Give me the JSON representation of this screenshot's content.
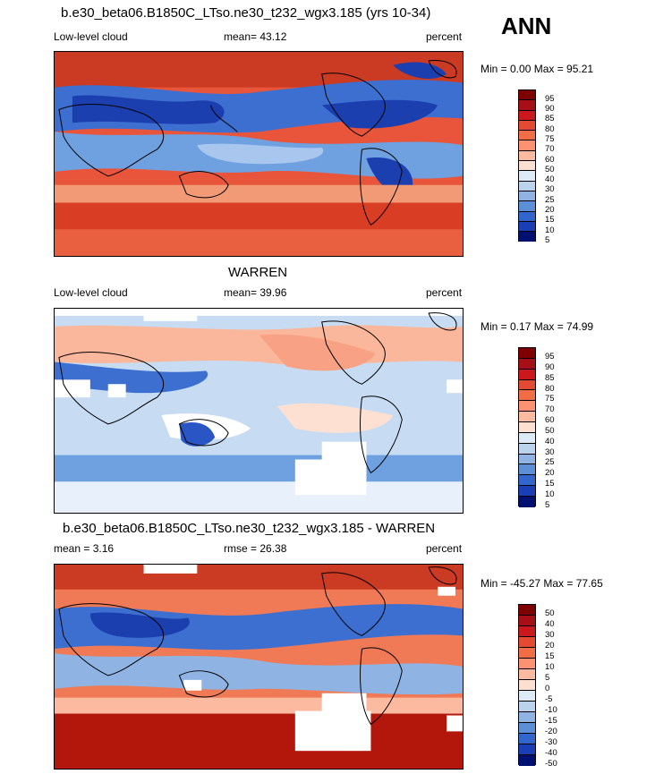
{
  "season": "ANN",
  "panels": [
    {
      "title": "b.e30_beta06.B1850C_LTso.ne30_t232_wgx3.185 (yrs 10-34)",
      "left_label": "Low-level cloud",
      "center_label": "mean=  43.12",
      "right_label": "percent",
      "minmax": "Min =   0.00 Max =  95.21",
      "colorbar_labels": [
        "95",
        "90",
        "85",
        "80",
        "75",
        "70",
        "60",
        "50",
        "40",
        "30",
        "25",
        "20",
        "15",
        "10",
        "5"
      ]
    },
    {
      "title": "WARREN",
      "left_label": "Low-level cloud",
      "center_label": "mean=  39.96",
      "right_label": "percent",
      "minmax": "Min =   0.17 Max =  74.99",
      "colorbar_labels": [
        "95",
        "90",
        "85",
        "80",
        "75",
        "70",
        "60",
        "50",
        "40",
        "30",
        "25",
        "20",
        "15",
        "10",
        "5"
      ]
    },
    {
      "title": "b.e30_beta06.B1850C_LTso.ne30_t232_wgx3.185 - WARREN",
      "left_label": "mean =   3.16",
      "center_label": "rmse =  26.38",
      "right_label": "percent",
      "minmax": "Min = -45.27 Max =  77.65",
      "colorbar_labels": [
        "50",
        "40",
        "30",
        "20",
        "15",
        "10",
        "5",
        "0",
        "-5",
        "-10",
        "-15",
        "-20",
        "-30",
        "-40",
        "-50"
      ]
    }
  ],
  "colors": {
    "scale": [
      "#7f0000",
      "#a50f15",
      "#cb181d",
      "#e34a33",
      "#f16d45",
      "#fc9272",
      "#fcbba1",
      "#fee0d2",
      "#ffffff",
      "#deebf7",
      "#bcd3ee",
      "#8fb4e3",
      "#5b8fd6",
      "#3366cc",
      "#1a3fb5",
      "#08209a",
      "#001070"
    ]
  }
}
